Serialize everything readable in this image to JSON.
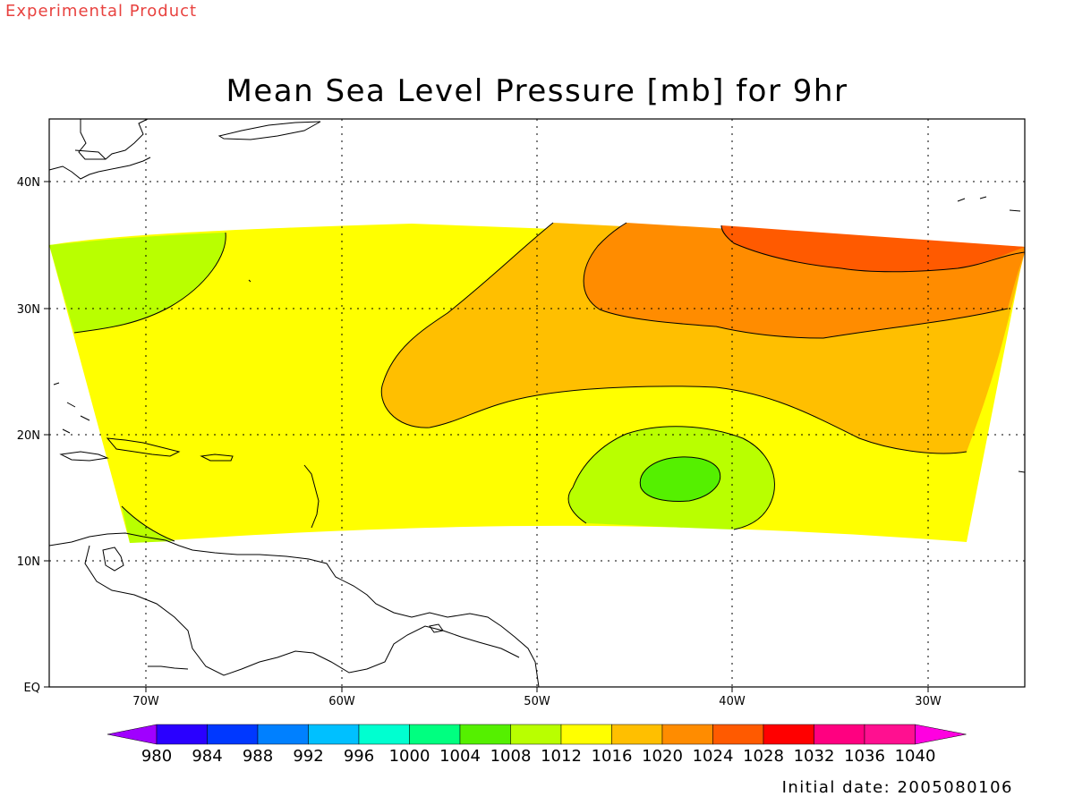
{
  "header": {
    "label": "Experimental Product"
  },
  "map": {
    "title": "Mean Sea Level Pressure [mb] for 9hr",
    "lon_ticks": [
      "70W",
      "60W",
      "50W",
      "40W",
      "30W"
    ],
    "lat_ticks": [
      "40N",
      "30N",
      "20N",
      "10N",
      "EQ"
    ],
    "regions": [
      {
        "name": "1008-1012 northwest",
        "color": "#b9ff00"
      },
      {
        "name": "1012-1016 main",
        "color": "#ffff00"
      },
      {
        "name": "1016-1020 north central",
        "color": "#ffbf00"
      },
      {
        "name": "1020-1024 north east",
        "color": "#ff8c00"
      },
      {
        "name": "1024-1028 far north east",
        "color": "#ff5a00"
      },
      {
        "name": "1008-1012 central low",
        "color": "#b9ff00"
      },
      {
        "name": "1004-1008 central low core",
        "color": "#55f000"
      }
    ]
  },
  "colorbar": {
    "labels": [
      "980",
      "984",
      "988",
      "992",
      "996",
      "1000",
      "1004",
      "1008",
      "1012",
      "1016",
      "1020",
      "1024",
      "1028",
      "1032",
      "1036",
      "1040"
    ],
    "colors": [
      "#a000ff",
      "#2a00ff",
      "#0038ff",
      "#0080ff",
      "#00c0ff",
      "#00ffd0",
      "#00ff80",
      "#55f000",
      "#b9ff00",
      "#ffff00",
      "#ffbf00",
      "#ff8c00",
      "#ff5a00",
      "#ff0000",
      "#ff0080",
      "#ff1090",
      "#ff00e0"
    ]
  },
  "footer": {
    "initial_date": "Initial date: 2005080106"
  }
}
